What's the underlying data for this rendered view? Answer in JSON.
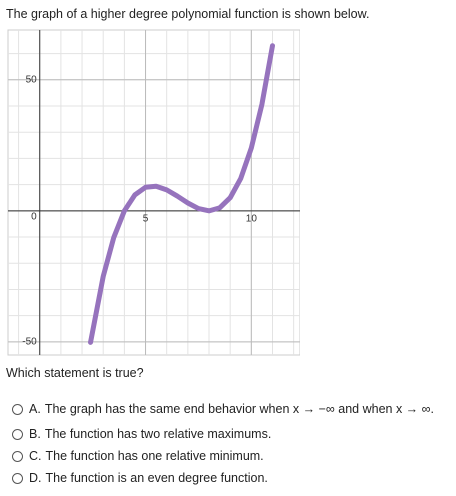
{
  "question": {
    "prompt": "The graph of a higher degree polynomial function is shown below.",
    "ask": "Which statement is true?"
  },
  "chart_data": {
    "type": "line",
    "x": [
      2.4,
      3,
      3.5,
      4,
      4.5,
      5,
      5.5,
      6,
      6.5,
      7,
      7.5,
      8,
      8.5,
      9,
      9.5,
      10,
      10.5,
      11
    ],
    "series": [
      {
        "color": "#9673bd",
        "values": [
          -50.18,
          -25,
          -10.13,
          0,
          6.13,
          9,
          9.38,
          8,
          5.63,
          3,
          0.88,
          0,
          1.13,
          5,
          12.38,
          24,
          40.63,
          63
        ]
      }
    ],
    "xlim": [
      -1.5,
      12.3
    ],
    "ylim": [
      -55,
      69
    ],
    "xticks": [
      5,
      10
    ],
    "yticks": [
      -50,
      0,
      50
    ],
    "xgrid": [
      -1,
      0,
      1,
      2,
      3,
      4,
      5,
      6,
      7,
      8,
      9,
      10,
      11,
      12
    ],
    "ygrid": [
      -50,
      -40,
      -30,
      -20,
      -10,
      0,
      10,
      20,
      30,
      40,
      50,
      60
    ],
    "grid": true
  },
  "options": [
    {
      "letter": "A.",
      "text": "The graph has the same end behavior when x → −∞ and when x → ∞."
    },
    {
      "letter": "B.",
      "text": "The function has two relative maximums."
    },
    {
      "letter": "C.",
      "text": "The function has one relative minimum."
    },
    {
      "letter": "D.",
      "text": "The function is an even degree function."
    }
  ]
}
